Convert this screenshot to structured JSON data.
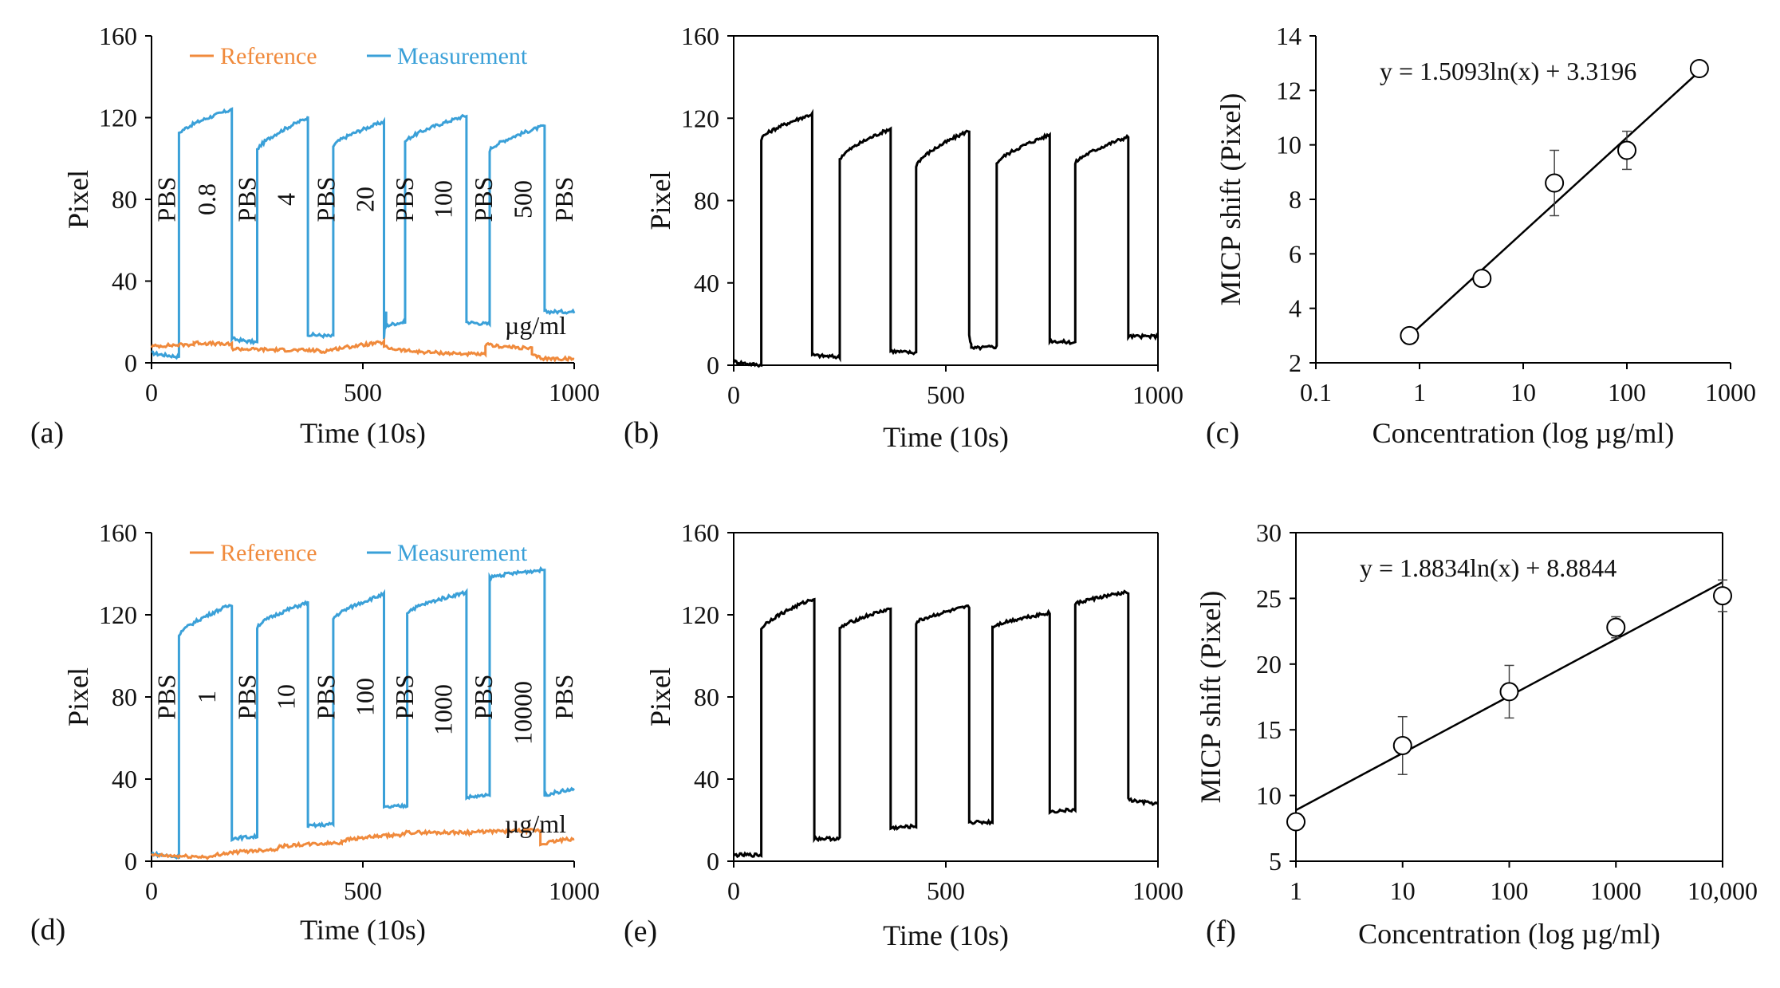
{
  "figure": {
    "panels": [
      {
        "id": "a",
        "label": "(a)"
      },
      {
        "id": "b",
        "label": "(b)"
      },
      {
        "id": "c",
        "label": "(c)"
      },
      {
        "id": "d",
        "label": "(d)"
      },
      {
        "id": "e",
        "label": "(e)"
      },
      {
        "id": "f",
        "label": "(f)"
      }
    ]
  },
  "colors": {
    "reference": "#f08a3c",
    "measurement": "#3aa0d8",
    "signal": "#000000"
  },
  "chart_data": [
    {
      "panel": "a",
      "type": "line",
      "xlabel": "Time (10s)",
      "ylabel": "Pixel",
      "xlim": [
        0,
        1000
      ],
      "ylim": [
        0,
        160
      ],
      "xticks": [
        0,
        500,
        1000
      ],
      "yticks": [
        0,
        40,
        80,
        120,
        160
      ],
      "xtick_labels": [
        "0",
        "500",
        "1000"
      ],
      "ytick_labels": [
        "0",
        "40",
        "80",
        "120",
        "160"
      ],
      "legend": [
        "Reference",
        "Measurement"
      ],
      "series": [
        {
          "name": "Measurement",
          "color": "measurement",
          "segments": [
            [
              0,
              5,
              65,
              3
            ],
            [
              65,
              112,
              190,
              124
            ],
            [
              190,
              12,
              250,
              10
            ],
            [
              250,
              104,
              370,
              120
            ],
            [
              370,
              14,
              430,
              13
            ],
            [
              430,
              106,
              550,
              118
            ],
            [
              550,
              12,
              555,
              25
            ],
            [
              555,
              18,
              600,
              20
            ],
            [
              600,
              108,
              745,
              121
            ],
            [
              745,
              20,
              800,
              19
            ],
            [
              800,
              104,
              930,
              116
            ],
            [
              930,
              25,
              1000,
              25
            ]
          ]
        },
        {
          "name": "Reference",
          "color": "reference",
          "segments": [
            [
              0,
              8,
              100,
              9
            ],
            [
              100,
              10,
              190,
              9
            ],
            [
              190,
              7,
              400,
              6
            ],
            [
              400,
              5,
              550,
              10
            ],
            [
              550,
              8,
              600,
              6
            ],
            [
              600,
              6,
              790,
              4
            ],
            [
              790,
              9,
              900,
              7
            ],
            [
              900,
              4,
              930,
              2
            ],
            [
              930,
              2,
              1000,
              2
            ]
          ]
        }
      ],
      "annotations": [
        "PBS",
        "0.8",
        "PBS",
        "4",
        "PBS",
        "20",
        "PBS",
        "100",
        "PBS",
        "500",
        "PBS"
      ],
      "annotation_x": [
        35,
        130,
        225,
        318,
        412,
        505,
        598,
        690,
        785,
        878,
        975
      ],
      "unit_note": "µg/ml"
    },
    {
      "panel": "b",
      "type": "line",
      "xlabel": "Time (10s)",
      "ylabel": "Pixel",
      "xlim": [
        0,
        1000
      ],
      "ylim": [
        0,
        160
      ],
      "xticks": [
        0,
        500,
        1000
      ],
      "yticks": [
        0,
        40,
        80,
        120,
        160
      ],
      "xtick_labels": [
        "0",
        "500",
        "1000"
      ],
      "ytick_labels": [
        "0",
        "40",
        "80",
        "120",
        "160"
      ],
      "series": [
        {
          "name": "Signal",
          "color": "signal",
          "segments": [
            [
              0,
              2,
              65,
              0
            ],
            [
              65,
              110,
              185,
              122
            ],
            [
              185,
              5,
              250,
              4
            ],
            [
              250,
              100,
              370,
              115
            ],
            [
              370,
              7,
              430,
              6
            ],
            [
              430,
              97,
              555,
              114
            ],
            [
              555,
              15,
              560,
              10
            ],
            [
              560,
              8,
              620,
              9
            ],
            [
              620,
              98,
              745,
              112
            ],
            [
              745,
              12,
              805,
              11
            ],
            [
              805,
              98,
              930,
              111
            ],
            [
              930,
              14,
              1000,
              14
            ]
          ]
        }
      ]
    },
    {
      "panel": "c",
      "type": "scatter",
      "xscale": "log",
      "xlabel": "Concentration (log µg/ml)",
      "ylabel": "MICP shift (Pixel)",
      "xlim": [
        0.1,
        1000
      ],
      "ylim": [
        2,
        14
      ],
      "xticks": [
        0.1,
        1,
        10,
        100,
        1000
      ],
      "yticks": [
        2,
        4,
        6,
        8,
        10,
        12,
        14
      ],
      "xtick_labels": [
        "0.1",
        "1",
        "10",
        "100",
        "1000"
      ],
      "ytick_labels": [
        "2",
        "4",
        "6",
        "8",
        "10",
        "12",
        "14"
      ],
      "x": [
        0.8,
        4,
        20,
        100,
        500
      ],
      "y": [
        3.0,
        5.1,
        8.6,
        9.8,
        12.8
      ],
      "err": [
        0.1,
        0.2,
        1.2,
        0.7,
        0.1
      ],
      "fit": {
        "a": 1.5093,
        "b": 3.3196,
        "xrange": [
          0.8,
          500
        ]
      },
      "equation": "y = 1.5093ln(x) + 3.3196"
    },
    {
      "panel": "d",
      "type": "line",
      "xlabel": "Time (10s)",
      "ylabel": "Pixel",
      "xlim": [
        0,
        1000
      ],
      "ylim": [
        0,
        160
      ],
      "xticks": [
        0,
        500,
        1000
      ],
      "yticks": [
        0,
        40,
        80,
        120,
        160
      ],
      "xtick_labels": [
        "0",
        "500",
        "1000"
      ],
      "ytick_labels": [
        "0",
        "40",
        "80",
        "120",
        "160"
      ],
      "legend": [
        "Reference",
        "Measurement"
      ],
      "series": [
        {
          "name": "Measurement",
          "color": "measurement",
          "segments": [
            [
              0,
              4,
              65,
              2
            ],
            [
              65,
              110,
              190,
              125
            ],
            [
              190,
              11,
              250,
              12
            ],
            [
              250,
              114,
              370,
              126
            ],
            [
              370,
              17,
              430,
              18
            ],
            [
              430,
              118,
              550,
              130
            ],
            [
              550,
              26,
              605,
              27
            ],
            [
              605,
              121,
              745,
              131
            ],
            [
              745,
              31,
              800,
              32
            ],
            [
              800,
              138,
              930,
              142
            ],
            [
              930,
              32,
              1000,
              35
            ]
          ]
        },
        {
          "name": "Reference",
          "color": "reference",
          "segments": [
            [
              0,
              3,
              150,
              2
            ],
            [
              150,
              3,
              300,
              6
            ],
            [
              300,
              7,
              450,
              9
            ],
            [
              450,
              10,
              600,
              13
            ],
            [
              600,
              14,
              750,
              14
            ],
            [
              750,
              14,
              920,
              15
            ],
            [
              920,
              8,
              1000,
              11
            ]
          ]
        }
      ],
      "annotations": [
        "PBS",
        "1",
        "PBS",
        "10",
        "PBS",
        "100",
        "PBS",
        "1000",
        "PBS",
        "10000",
        "PBS"
      ],
      "annotation_x": [
        35,
        130,
        225,
        318,
        412,
        505,
        598,
        690,
        785,
        878,
        975
      ],
      "unit_note": "µg/ml"
    },
    {
      "panel": "e",
      "type": "line",
      "xlabel": "Time (10s)",
      "ylabel": "Pixel",
      "xlim": [
        0,
        1000
      ],
      "ylim": [
        0,
        160
      ],
      "xticks": [
        0,
        500,
        1000
      ],
      "yticks": [
        0,
        40,
        80,
        120,
        160
      ],
      "xtick_labels": [
        "0",
        "500",
        "1000"
      ],
      "ytick_labels": [
        "0",
        "40",
        "80",
        "120",
        "160"
      ],
      "series": [
        {
          "name": "Signal",
          "color": "signal",
          "segments": [
            [
              0,
              3,
              65,
              3
            ],
            [
              65,
              113,
              190,
              128
            ],
            [
              190,
              11,
              250,
              11
            ],
            [
              250,
              113,
              370,
              123
            ],
            [
              370,
              16,
              430,
              17
            ],
            [
              430,
              116,
              555,
              124
            ],
            [
              555,
              19,
              610,
              19
            ],
            [
              610,
              114,
              745,
              121
            ],
            [
              745,
              24,
              805,
              25
            ],
            [
              805,
              125,
              930,
              131
            ],
            [
              930,
              30,
              1000,
              28
            ]
          ]
        }
      ]
    },
    {
      "panel": "f",
      "type": "scatter",
      "xscale": "log",
      "xlabel": "Concentration (log µg/ml)",
      "ylabel": "MICP shift (Pixel)",
      "xlim": [
        1,
        10000
      ],
      "ylim": [
        5,
        30
      ],
      "xticks": [
        1,
        10,
        100,
        1000,
        10000
      ],
      "yticks": [
        5,
        10,
        15,
        20,
        25,
        30
      ],
      "xtick_labels": [
        "1",
        "10",
        "100",
        "1000",
        "10,000"
      ],
      "ytick_labels": [
        "5",
        "10",
        "15",
        "20",
        "25",
        "30"
      ],
      "x": [
        1,
        10,
        100,
        1000,
        10000
      ],
      "y": [
        8.0,
        13.8,
        17.9,
        22.8,
        25.2
      ],
      "err": [
        0.2,
        2.2,
        2.0,
        0.8,
        1.2
      ],
      "fit": {
        "a": 1.8834,
        "b": 8.8844,
        "xrange": [
          1,
          10000
        ]
      },
      "equation": "y = 1.8834ln(x) + 8.8844"
    }
  ]
}
